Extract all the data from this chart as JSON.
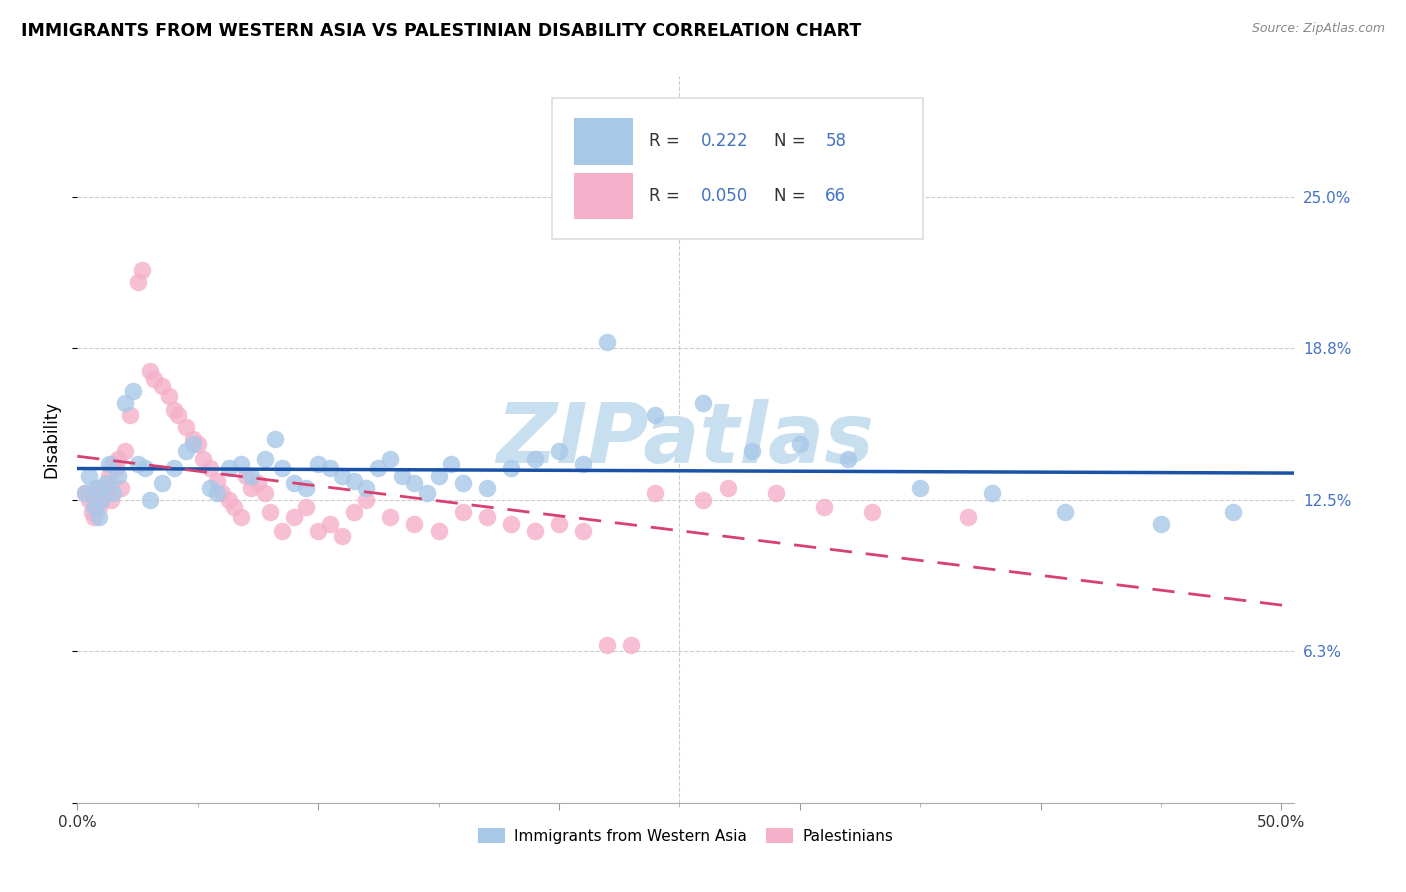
{
  "title": "IMMIGRANTS FROM WESTERN ASIA VS PALESTINIAN DISABILITY CORRELATION CHART",
  "source": "Source: ZipAtlas.com",
  "ylabel": "Disability",
  "xlim": [
    0.0,
    0.505
  ],
  "ylim": [
    0.0,
    0.3
  ],
  "ytick_vals": [
    0.0,
    0.0625,
    0.125,
    0.1875,
    0.25
  ],
  "ytick_labels": [
    "",
    "6.3%",
    "12.5%",
    "18.8%",
    "25.0%"
  ],
  "xtick_vals": [
    0.0,
    0.1,
    0.2,
    0.3,
    0.4,
    0.5
  ],
  "xtick_labels": [
    "0.0%",
    "",
    "",
    "",
    "",
    "50.0%"
  ],
  "blue_R": 0.222,
  "blue_N": 58,
  "pink_R": 0.05,
  "pink_N": 66,
  "blue_scatter_color": "#a8c8e8",
  "pink_scatter_color": "#f4b0c8",
  "blue_line_color": "#1a52a8",
  "pink_line_color": "#d84070",
  "tick_label_color": "#4472c4",
  "legend_R_color": "#333399",
  "legend_N_color": "#4472c4",
  "background_color": "#ffffff",
  "grid_color": "#cccccc",
  "watermark": "ZIPatlas",
  "watermark_color": "#c8dff0",
  "blue_x": [
    0.003,
    0.005,
    0.007,
    0.008,
    0.009,
    0.01,
    0.012,
    0.013,
    0.015,
    0.017,
    0.02,
    0.023,
    0.025,
    0.028,
    0.03,
    0.035,
    0.04,
    0.045,
    0.048,
    0.055,
    0.058,
    0.063,
    0.068,
    0.072,
    0.078,
    0.082,
    0.085,
    0.09,
    0.095,
    0.1,
    0.105,
    0.11,
    0.115,
    0.12,
    0.125,
    0.13,
    0.135,
    0.14,
    0.145,
    0.15,
    0.155,
    0.16,
    0.17,
    0.18,
    0.19,
    0.2,
    0.21,
    0.22,
    0.24,
    0.26,
    0.28,
    0.3,
    0.32,
    0.35,
    0.38,
    0.41,
    0.45,
    0.48
  ],
  "blue_y": [
    0.128,
    0.135,
    0.122,
    0.13,
    0.118,
    0.125,
    0.132,
    0.14,
    0.128,
    0.135,
    0.165,
    0.17,
    0.14,
    0.138,
    0.125,
    0.132,
    0.138,
    0.145,
    0.148,
    0.13,
    0.128,
    0.138,
    0.14,
    0.135,
    0.142,
    0.15,
    0.138,
    0.132,
    0.13,
    0.14,
    0.138,
    0.135,
    0.133,
    0.13,
    0.138,
    0.142,
    0.135,
    0.132,
    0.128,
    0.135,
    0.14,
    0.132,
    0.13,
    0.138,
    0.142,
    0.145,
    0.14,
    0.19,
    0.16,
    0.165,
    0.145,
    0.148,
    0.142,
    0.13,
    0.128,
    0.12,
    0.115,
    0.12
  ],
  "pink_x": [
    0.003,
    0.005,
    0.006,
    0.007,
    0.008,
    0.009,
    0.01,
    0.011,
    0.012,
    0.013,
    0.014,
    0.015,
    0.016,
    0.017,
    0.018,
    0.02,
    0.022,
    0.025,
    0.027,
    0.03,
    0.032,
    0.035,
    0.038,
    0.04,
    0.042,
    0.045,
    0.048,
    0.05,
    0.052,
    0.055,
    0.058,
    0.06,
    0.063,
    0.065,
    0.068,
    0.07,
    0.072,
    0.075,
    0.078,
    0.08,
    0.085,
    0.09,
    0.095,
    0.1,
    0.105,
    0.11,
    0.115,
    0.12,
    0.13,
    0.14,
    0.15,
    0.16,
    0.17,
    0.18,
    0.19,
    0.2,
    0.21,
    0.22,
    0.23,
    0.24,
    0.26,
    0.27,
    0.29,
    0.31,
    0.33,
    0.37
  ],
  "pink_y": [
    0.128,
    0.125,
    0.12,
    0.118,
    0.13,
    0.122,
    0.125,
    0.13,
    0.128,
    0.135,
    0.125,
    0.14,
    0.138,
    0.142,
    0.13,
    0.145,
    0.16,
    0.215,
    0.22,
    0.178,
    0.175,
    0.172,
    0.168,
    0.162,
    0.16,
    0.155,
    0.15,
    0.148,
    0.142,
    0.138,
    0.133,
    0.128,
    0.125,
    0.122,
    0.118,
    0.135,
    0.13,
    0.132,
    0.128,
    0.12,
    0.112,
    0.118,
    0.122,
    0.112,
    0.115,
    0.11,
    0.12,
    0.125,
    0.118,
    0.115,
    0.112,
    0.12,
    0.118,
    0.115,
    0.112,
    0.115,
    0.112,
    0.065,
    0.065,
    0.128,
    0.125,
    0.13,
    0.128,
    0.122,
    0.12,
    0.118
  ]
}
